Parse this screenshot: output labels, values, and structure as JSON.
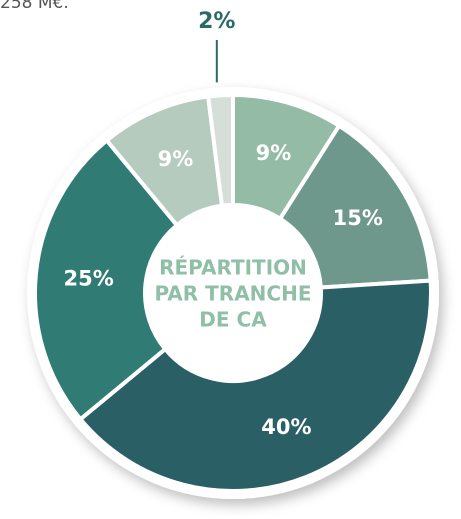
{
  "note": "258 M€.",
  "chart_data": {
    "type": "donut",
    "title": [
      "RÉPARTITION",
      "PAR TRANCHE",
      "DE CA"
    ],
    "values": [
      9,
      15,
      40,
      25,
      9,
      2
    ],
    "value_labels": [
      "9%",
      "15%",
      "40%",
      "25%",
      "9%",
      "2%"
    ],
    "colors": [
      "#93bba6",
      "#6f988c",
      "#2b5f66",
      "#307c74",
      "#b5cbbd",
      "#d5dfd8"
    ]
  }
}
